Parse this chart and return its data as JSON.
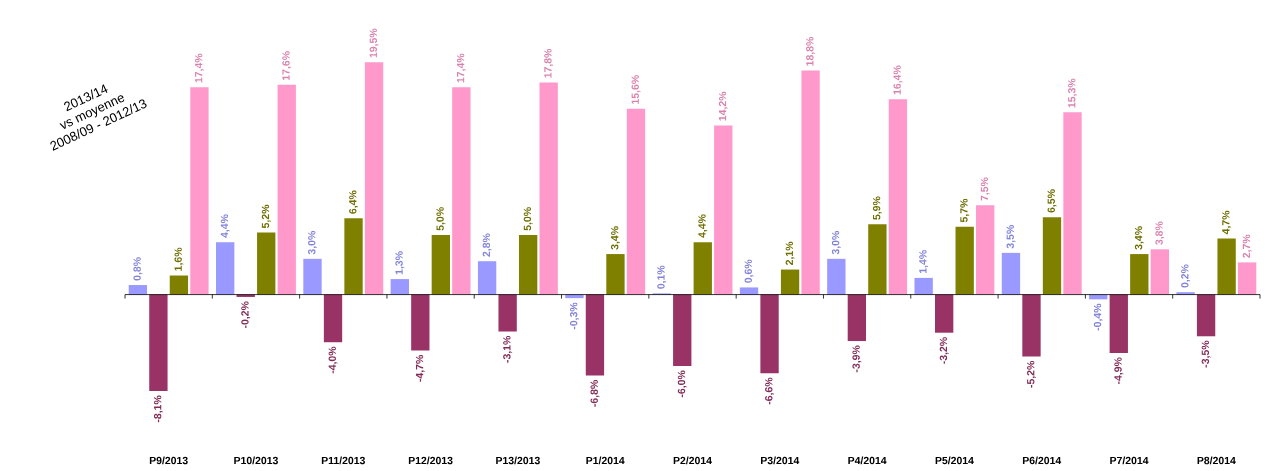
{
  "chart_data": {
    "type": "bar",
    "annotations": [
      "2013/14",
      "vs moyenne",
      "2008/09 - 2012/13"
    ],
    "categories": [
      "P9/2013",
      "P10/2013",
      "P11/2013",
      "P12/2013",
      "P13/2013",
      "P1/2014",
      "P2/2014",
      "P3/2014",
      "P4/2014",
      "P5/2014",
      "P6/2014",
      "P7/2014",
      "P8/2014"
    ],
    "series": [
      {
        "color": "#9999ff",
        "values": [
          0.8,
          4.4,
          3.0,
          1.3,
          2.8,
          -0.3,
          0.1,
          0.6,
          3.0,
          1.4,
          3.5,
          -0.4,
          0.2
        ],
        "value_labels": [
          "0,8%",
          "4,4%",
          "3,0%",
          "1,3%",
          "2,8%",
          "-0,3%",
          "0,1%",
          "0,6%",
          "3,0%",
          "1,4%",
          "3,5%",
          "-0,4%",
          "0,2%"
        ]
      },
      {
        "color": "#993366",
        "values": [
          -8.1,
          -0.2,
          -4.0,
          -4.7,
          -3.1,
          -6.8,
          -6.0,
          -6.6,
          -3.9,
          -3.2,
          -5.2,
          -4.9,
          -3.5
        ],
        "value_labels": [
          "-8,1%",
          "-0,2%",
          "-4,0%",
          "-4,7%",
          "-3,1%",
          "-6,8%",
          "-6,0%",
          "-6,6%",
          "-3,9%",
          "-3,2%",
          "-5,2%",
          "-4,9%",
          "-3,5%"
        ]
      },
      {
        "color": "#808000",
        "values": [
          1.6,
          5.2,
          6.4,
          5.0,
          5.0,
          3.4,
          4.4,
          2.1,
          5.9,
          5.7,
          6.5,
          3.4,
          4.7
        ],
        "value_labels": [
          "1,6%",
          "5,2%",
          "6,4%",
          "5,0%",
          "5,0%",
          "3,4%",
          "4,4%",
          "2,1%",
          "5,9%",
          "5,7%",
          "6,5%",
          "3,4%",
          "4,7%"
        ]
      },
      {
        "color": "#ff99cc",
        "values": [
          17.4,
          17.6,
          19.5,
          17.4,
          17.8,
          15.6,
          14.2,
          18.8,
          16.4,
          7.5,
          15.3,
          3.8,
          2.7
        ],
        "value_labels": [
          "17,4%",
          "17,6%",
          "19,5%",
          "17,4%",
          "17,8%",
          "15,6%",
          "14,2%",
          "18,8%",
          "16,4%",
          "7,5%",
          "15,3%",
          "3,8%",
          "2,7%"
        ]
      }
    ]
  }
}
